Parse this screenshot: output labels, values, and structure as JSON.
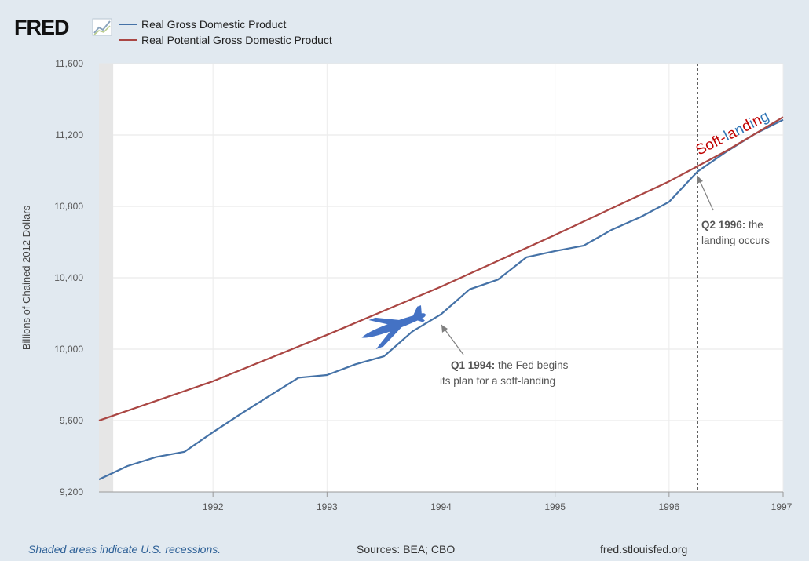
{
  "header": {
    "logo_text": "FRED",
    "logo_icon": "line-chart-icon"
  },
  "chart_data": {
    "type": "line",
    "title": "",
    "xlabel": "",
    "ylabel": "Billions of Chained 2012 Dollars",
    "ylim": [
      9200,
      11600
    ],
    "xlim": [
      1991.0,
      1997.0
    ],
    "grid": true,
    "legend_position": "top-left",
    "x_ticks": [
      1992,
      1993,
      1994,
      1995,
      1996,
      1997
    ],
    "x_tick_labels": [
      "1992",
      "1993",
      "1994",
      "1995",
      "1996",
      "1997"
    ],
    "y_ticks": [
      9200,
      9600,
      10000,
      10400,
      10800,
      11200,
      11600
    ],
    "y_tick_labels": [
      "9,200",
      "9,600",
      "10,000",
      "10,400",
      "10,800",
      "11,200",
      "11,600"
    ],
    "recessions": [
      [
        1991.0,
        1991.25
      ]
    ],
    "series": [
      {
        "name": "Real Gross Domestic Product",
        "color": "#4572a7",
        "x": [
          1991.0,
          1991.25,
          1991.5,
          1991.75,
          1992.0,
          1992.25,
          1992.5,
          1992.75,
          1993.0,
          1993.25,
          1993.5,
          1993.75,
          1994.0,
          1994.25,
          1994.5,
          1994.75,
          1995.0,
          1995.25,
          1995.5,
          1995.75,
          1996.0,
          1996.25,
          1996.5,
          1996.75,
          1997.0
        ],
        "values": [
          9270,
          9345,
          9395,
          9425,
          9535,
          9640,
          9740,
          9840,
          9855,
          9915,
          9960,
          10100,
          10195,
          10335,
          10390,
          10515,
          10550,
          10580,
          10670,
          10740,
          10825,
          10995,
          11105,
          11205,
          11285
        ]
      },
      {
        "name": "Real Potential Gross Domestic Product",
        "color": "#aa4643",
        "x": [
          1991.0,
          1992.0,
          1993.0,
          1994.0,
          1995.0,
          1996.0,
          1996.5,
          1997.0
        ],
        "values": [
          9600,
          9820,
          10080,
          10350,
          10640,
          10940,
          11110,
          11300
        ]
      }
    ],
    "annotations": [
      {
        "x": 1994.0,
        "bold": "Q1 1994:",
        "text_line1": " the Fed begins",
        "text_line2": "its plan for a soft-landing"
      },
      {
        "x": 1996.25,
        "bold": "Q2 1996:",
        "text_line1": " the",
        "text_line2": "landing occurs"
      }
    ],
    "soft_landing_label": [
      "S",
      "o",
      "f",
      "t",
      "-",
      "l",
      "a",
      "n",
      "d",
      "i",
      "n",
      "g"
    ],
    "soft_landing_colors": [
      "#c00000",
      "#c00000",
      "#c00000",
      "#c00000",
      "#c00000",
      "#2e75b6",
      "#c00000",
      "#2e75b6",
      "#c00000",
      "#2e75b6",
      "#c00000",
      "#2e75b6"
    ],
    "plane_icon": "airplane-icon"
  },
  "footer": {
    "recession_note": "Shaded areas indicate U.S. recessions.",
    "sources": "Sources: BEA; CBO",
    "url": "fred.stlouisfed.org"
  }
}
